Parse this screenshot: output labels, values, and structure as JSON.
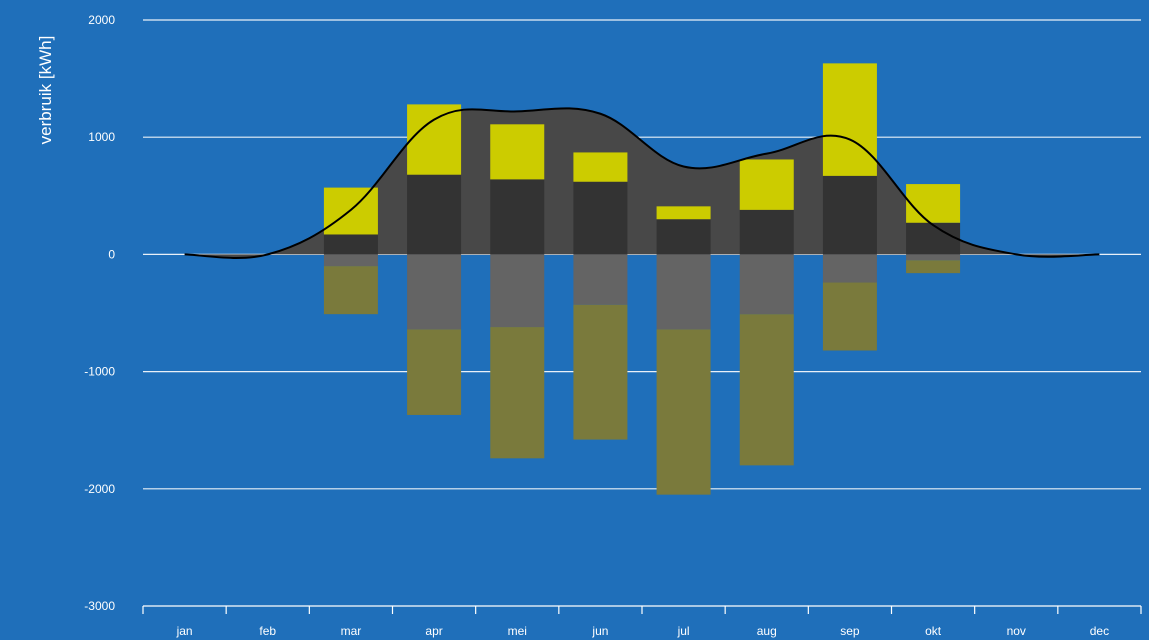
{
  "chart_data": {
    "type": "bar",
    "title": "",
    "ylabel": "verbruik [kWh]",
    "xlabel": "",
    "categories": [
      "jan",
      "feb",
      "mar",
      "apr",
      "mei",
      "jun",
      "jul",
      "aug",
      "sep",
      "okt",
      "nov",
      "dec"
    ],
    "ylim": [
      -3000,
      2000
    ],
    "yticks": [
      2000,
      1000,
      0,
      -1000,
      -2000,
      -3000
    ],
    "grid": true,
    "legend": "none",
    "series": [
      {
        "values": [
          0,
          0,
          170,
          680,
          640,
          620,
          300,
          380,
          670,
          270,
          0,
          0
        ]
      },
      {
        "values": [
          0,
          0,
          400,
          600,
          470,
          250,
          110,
          430,
          960,
          330,
          0,
          0
        ]
      },
      {
        "values": [
          0,
          0,
          -100,
          -640,
          -620,
          -430,
          -640,
          -510,
          -240,
          -50,
          0,
          0
        ]
      },
      {
        "values": [
          0,
          0,
          -410,
          -730,
          -1120,
          -1150,
          -1410,
          -1290,
          -580,
          -110,
          0,
          0
        ]
      }
    ],
    "line": {
      "values": [
        0,
        0,
        380,
        1150,
        1220,
        1200,
        750,
        860,
        980,
        250,
        0,
        0
      ]
    },
    "colors": {
      "background": "#1f6fba",
      "area": "#484848",
      "bar_dark": "#333333",
      "bar_yellow": "#cccc00",
      "bar_grey": "#646464",
      "bar_olive": "#7a7a3c",
      "line": "#000000",
      "text": "#ffffff"
    }
  }
}
